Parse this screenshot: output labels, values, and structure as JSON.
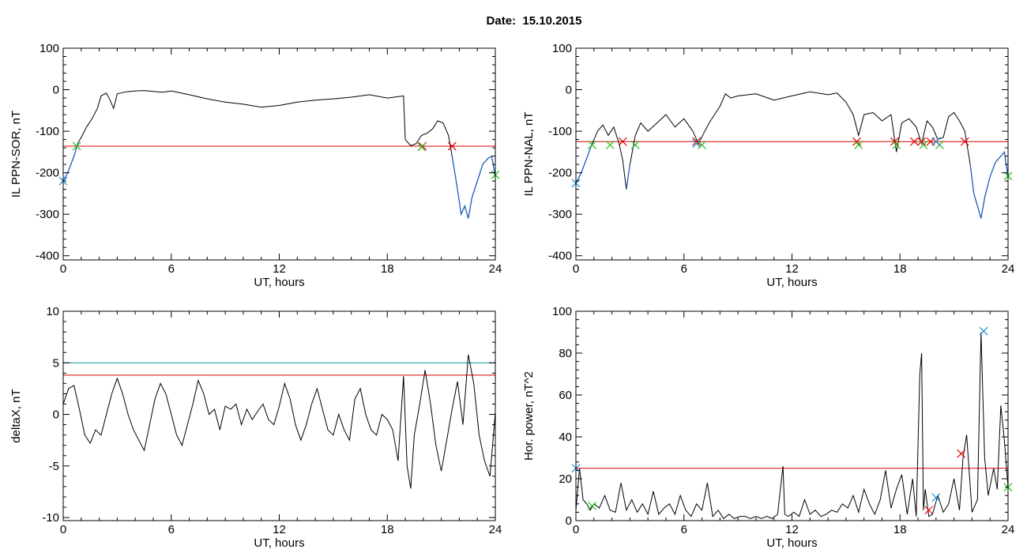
{
  "header": {
    "title": "Date:  15.10.2015"
  },
  "colors": {
    "trace": "#000000",
    "threshold_red": "#e00000",
    "threshold_teal": "#00909a",
    "substorm_segment": "#1a5fc8",
    "marker_red": "#e00000",
    "marker_green": "#22c022",
    "marker_blue": "#1f8fd0"
  },
  "chart_data": [
    {
      "type": "line",
      "title": "",
      "xlabel": "UT, hours",
      "ylabel": "IL PPN-SOR, nT",
      "xlim": [
        0,
        24
      ],
      "ylim": [
        -410,
        100
      ],
      "xticks": [
        0,
        6,
        12,
        18,
        24
      ],
      "yticks": [
        100,
        0,
        -100,
        -200,
        -300,
        -400
      ],
      "threshold_red": -136,
      "series": [
        {
          "x": [
            0,
            0.3,
            0.6,
            0.8,
            1.0,
            1.3,
            1.6,
            1.9,
            2.1,
            2.4,
            2.6,
            2.8,
            3.0,
            3.5,
            4.0,
            4.5,
            5.0,
            5.5,
            6.0,
            7.0,
            8.0,
            9.0,
            10.0,
            11.0,
            12.0,
            13.0,
            14.0,
            15.0,
            16.0,
            17.0,
            18.0,
            18.9,
            19.0,
            19.3,
            19.6,
            19.9,
            20.2,
            20.5,
            20.8,
            21.1,
            21.4,
            21.6,
            21.9,
            22.1,
            22.3,
            22.5,
            22.7,
            23.0,
            23.3,
            23.6,
            23.8,
            24.0
          ],
          "values": [
            -220,
            -195,
            -160,
            -130,
            -115,
            -90,
            -70,
            -45,
            -15,
            -8,
            -25,
            -45,
            -10,
            -5,
            -3,
            -2,
            -4,
            -6,
            -3,
            -12,
            -22,
            -30,
            -35,
            -42,
            -38,
            -30,
            -25,
            -22,
            -18,
            -12,
            -20,
            -15,
            -120,
            -135,
            -130,
            -110,
            -105,
            -95,
            -75,
            -80,
            -110,
            -160,
            -240,
            -300,
            -280,
            -310,
            -260,
            -220,
            -180,
            -165,
            -160,
            -210
          ]
        }
      ],
      "blue_segments": [
        [
          0,
          0.8
        ],
        [
          21.5,
          24
        ]
      ],
      "markers_red": [
        [
          19.95,
          -136
        ],
        [
          21.6,
          -136
        ]
      ],
      "markers_green": [
        [
          0.75,
          -136
        ],
        [
          19.9,
          -138
        ],
        [
          24,
          -205
        ]
      ],
      "markers_blue": [
        [
          0,
          -220
        ]
      ]
    },
    {
      "type": "line",
      "title": "",
      "xlabel": "UT, hours",
      "ylabel": "IL PPN-NAL, nT",
      "xlim": [
        0,
        24
      ],
      "ylim": [
        -410,
        100
      ],
      "xticks": [
        0,
        6,
        12,
        18,
        24
      ],
      "yticks": [
        100,
        0,
        -100,
        -200,
        -300,
        -400
      ],
      "threshold_red": -125,
      "series": [
        {
          "x": [
            0,
            0.3,
            0.6,
            0.9,
            1.2,
            1.5,
            1.8,
            2.1,
            2.4,
            2.6,
            2.8,
            3.0,
            3.3,
            3.6,
            4.0,
            4.5,
            5.0,
            5.5,
            6.0,
            6.5,
            6.8,
            7.1,
            7.4,
            7.7,
            8.0,
            8.3,
            8.6,
            9.0,
            10.0,
            11.0,
            12.0,
            13.0,
            14.0,
            14.5,
            15.0,
            15.4,
            15.7,
            16.0,
            16.5,
            17.0,
            17.5,
            17.8,
            18.1,
            18.5,
            18.9,
            19.2,
            19.5,
            19.8,
            20.1,
            20.4,
            20.7,
            21.0,
            21.3,
            21.6,
            21.9,
            22.1,
            22.3,
            22.5,
            22.7,
            23.0,
            23.3,
            23.6,
            23.8,
            24.0
          ],
          "values": [
            -225,
            -200,
            -165,
            -130,
            -100,
            -85,
            -110,
            -90,
            -130,
            -170,
            -240,
            -180,
            -110,
            -80,
            -100,
            -80,
            -60,
            -90,
            -70,
            -100,
            -130,
            -105,
            -80,
            -60,
            -40,
            -10,
            -20,
            -15,
            -10,
            -25,
            -15,
            -5,
            -12,
            -8,
            -30,
            -60,
            -110,
            -60,
            -55,
            -75,
            -60,
            -150,
            -80,
            -70,
            -90,
            -130,
            -75,
            -90,
            -120,
            -115,
            -65,
            -55,
            -75,
            -100,
            -180,
            -250,
            -280,
            -310,
            -260,
            -210,
            -175,
            -160,
            -150,
            -210
          ]
        }
      ],
      "blue_segments": [
        [
          0,
          0.9
        ],
        [
          2.7,
          3.2
        ],
        [
          6.6,
          6.9
        ],
        [
          21.8,
          24
        ]
      ],
      "markers_red": [
        [
          2.6,
          -125
        ],
        [
          6.7,
          -125
        ],
        [
          15.6,
          -125
        ],
        [
          17.7,
          -125
        ],
        [
          18.8,
          -125
        ],
        [
          19.2,
          -125
        ],
        [
          19.7,
          -125
        ],
        [
          20.0,
          -125
        ],
        [
          21.6,
          -125
        ]
      ],
      "markers_green": [
        [
          0.9,
          -133
        ],
        [
          1.9,
          -133
        ],
        [
          3.3,
          -133
        ],
        [
          7.0,
          -133
        ],
        [
          15.7,
          -133
        ],
        [
          17.8,
          -133
        ],
        [
          19.3,
          -133
        ],
        [
          20.2,
          -133
        ],
        [
          24,
          -208
        ]
      ],
      "markers_blue": [
        [
          0,
          -225
        ],
        [
          6.7,
          -130
        ],
        [
          20.0,
          -125
        ]
      ]
    },
    {
      "type": "line",
      "title": "",
      "xlabel": "UT, hours",
      "ylabel": "deltaX, nT",
      "xlim": [
        0,
        24
      ],
      "ylim": [
        -10.3,
        10
      ],
      "xticks": [
        0,
        6,
        12,
        18,
        24
      ],
      "yticks": [
        10,
        5,
        0,
        -5,
        -10
      ],
      "threshold_teal": 5,
      "threshold_red": 3.8,
      "series": [
        {
          "x": [
            0,
            0.3,
            0.6,
            0.9,
            1.2,
            1.5,
            1.8,
            2.1,
            2.4,
            2.7,
            3.0,
            3.3,
            3.6,
            3.9,
            4.2,
            4.5,
            4.8,
            5.1,
            5.4,
            5.7,
            6.0,
            6.3,
            6.6,
            6.9,
            7.2,
            7.5,
            7.8,
            8.1,
            8.4,
            8.7,
            9.0,
            9.3,
            9.6,
            9.9,
            10.2,
            10.5,
            10.8,
            11.1,
            11.4,
            11.7,
            12.0,
            12.3,
            12.6,
            12.9,
            13.2,
            13.5,
            13.8,
            14.1,
            14.4,
            14.7,
            15.0,
            15.3,
            15.6,
            15.9,
            16.2,
            16.5,
            16.8,
            17.1,
            17.4,
            17.7,
            18.0,
            18.3,
            18.6,
            18.9,
            19.1,
            19.3,
            19.5,
            19.8,
            20.1,
            20.4,
            20.7,
            21.0,
            21.3,
            21.6,
            21.9,
            22.2,
            22.5,
            22.8,
            23.1,
            23.4,
            23.7,
            24.0
          ],
          "values": [
            1,
            2.5,
            2.8,
            0.5,
            -2,
            -2.8,
            -1.5,
            -2,
            0,
            2,
            3.5,
            2,
            0,
            -1.5,
            -2.5,
            -3.5,
            -1,
            1.5,
            3,
            2,
            0,
            -2,
            -3,
            -1,
            1,
            3.3,
            2,
            0,
            0.5,
            -1.5,
            0.8,
            0.5,
            1,
            -1,
            0.5,
            -0.5,
            0.3,
            1,
            -0.5,
            -1,
            0.8,
            3,
            1.5,
            -1,
            -2.5,
            -1,
            1,
            2.5,
            0.5,
            -1.5,
            -2,
            0,
            -1.5,
            -2.5,
            1.5,
            2.5,
            0,
            -1.5,
            -2,
            0,
            -0.5,
            -1.5,
            -4.5,
            3.7,
            -5,
            -7.2,
            -2,
            1,
            4.3,
            1,
            -3,
            -5.5,
            -2.5,
            0.5,
            3.2,
            -1,
            5.8,
            3,
            -2,
            -4.5,
            -6,
            0.2
          ]
        }
      ]
    },
    {
      "type": "line",
      "title": "",
      "xlabel": "UT, hours",
      "ylabel": "Hor. power, nT^2",
      "xlim": [
        0,
        24
      ],
      "ylim": [
        0,
        100
      ],
      "xticks": [
        0,
        6,
        12,
        18,
        24
      ],
      "yticks": [
        100,
        80,
        60,
        40,
        20,
        0
      ],
      "threshold_red": 25,
      "series": [
        {
          "x": [
            0,
            0.2,
            0.4,
            0.6,
            0.8,
            1.0,
            1.3,
            1.6,
            1.9,
            2.2,
            2.5,
            2.8,
            3.1,
            3.4,
            3.7,
            4.0,
            4.3,
            4.6,
            4.9,
            5.2,
            5.5,
            5.8,
            6.1,
            6.4,
            6.7,
            7.0,
            7.3,
            7.6,
            7.9,
            8.2,
            8.5,
            8.8,
            9.1,
            9.4,
            9.7,
            10.0,
            10.3,
            10.6,
            10.9,
            11.2,
            11.5,
            11.6,
            11.8,
            12.1,
            12.4,
            12.7,
            13.0,
            13.3,
            13.6,
            13.9,
            14.2,
            14.5,
            14.8,
            15.1,
            15.4,
            15.7,
            16.0,
            16.3,
            16.6,
            16.9,
            17.2,
            17.5,
            17.8,
            18.1,
            18.4,
            18.7,
            18.9,
            19.1,
            19.2,
            19.3,
            19.4,
            19.6,
            19.8,
            20.1,
            20.4,
            20.7,
            21.0,
            21.3,
            21.5,
            21.7,
            22.0,
            22.3,
            22.5,
            22.7,
            22.9,
            23.2,
            23.4,
            23.6,
            23.8,
            24.0
          ],
          "values": [
            5,
            25,
            10,
            8,
            5,
            8,
            6,
            12,
            5,
            4,
            18,
            5,
            10,
            4,
            8,
            3,
            14,
            3,
            6,
            8,
            3,
            12,
            5,
            2,
            8,
            5,
            18,
            2,
            5,
            1,
            3,
            1,
            2,
            2,
            1,
            2,
            1,
            2,
            1,
            3,
            26,
            3,
            2,
            4,
            2,
            10,
            3,
            5,
            2,
            3,
            5,
            4,
            8,
            6,
            12,
            4,
            15,
            8,
            3,
            10,
            24,
            6,
            15,
            22,
            3,
            20,
            2,
            70,
            80,
            5,
            15,
            2,
            3,
            12,
            4,
            8,
            20,
            5,
            30,
            41,
            4,
            10,
            90,
            30,
            12,
            25,
            15,
            55,
            38,
            16
          ]
        }
      ],
      "markers_red": [
        [
          19.6,
          5
        ],
        [
          21.4,
          32
        ]
      ],
      "markers_green": [
        [
          0.9,
          7
        ],
        [
          24,
          16
        ]
      ],
      "markers_blue": [
        [
          0,
          25
        ],
        [
          20.0,
          11
        ],
        [
          22.65,
          90.5
        ]
      ]
    }
  ]
}
